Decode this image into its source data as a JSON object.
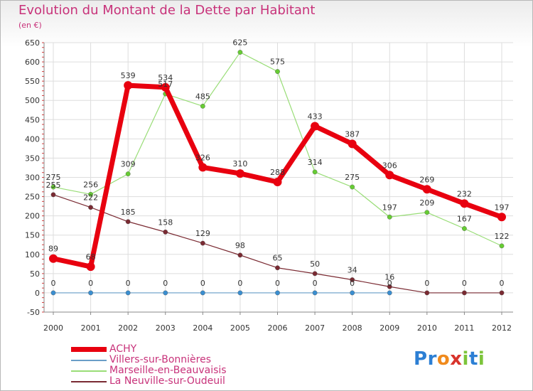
{
  "title": "Evolution du Montant de la Dette par Habitant",
  "subtitle": "(en €)",
  "logo": {
    "text": "Proxiti",
    "letters": [
      "P",
      "r",
      "o",
      "x",
      "i",
      "t",
      "i"
    ],
    "colors": [
      "#2c7fd4",
      "#2c7fd4",
      "#f08a1c",
      "#d8342c",
      "#7cc43a",
      "#2c7fd4",
      "#7cc43a"
    ]
  },
  "chart_data": {
    "type": "line",
    "title": "Evolution du Montant de la Dette par Habitant",
    "ylabel": "(en €)",
    "xlabel": "",
    "x": [
      "2000",
      "2001",
      "2002",
      "2003",
      "2004",
      "2005",
      "2006",
      "2007",
      "2008",
      "2009",
      "2010",
      "2011",
      "2012"
    ],
    "ylim": [
      -50,
      650
    ],
    "yticks": [
      -50,
      0,
      50,
      100,
      150,
      200,
      250,
      300,
      350,
      400,
      450,
      500,
      550,
      600,
      650
    ],
    "grid": true,
    "legend_position": "bottom-left",
    "series": [
      {
        "name": "ACHY",
        "color": "#e8000f",
        "point_color": "#e8000f",
        "width": 7,
        "values": [
          89,
          68,
          539,
          534,
          326,
          310,
          288,
          433,
          387,
          306,
          269,
          232,
          197
        ],
        "labels": [
          "89",
          "68",
          "539",
          "534",
          "326",
          "310",
          "288",
          "433",
          "387",
          "306",
          "269",
          "232",
          "197"
        ]
      },
      {
        "name": "Villers-sur-Bonnières",
        "color": "#6a9ec8",
        "point_color": "#3a8ed0",
        "width": 1.2,
        "values": [
          0,
          0,
          0,
          0,
          0,
          0,
          0,
          0,
          0,
          0,
          null,
          null,
          null
        ],
        "labels": [
          "0",
          "0",
          "0",
          "0",
          "0",
          "0",
          "0",
          "0",
          "0",
          "0",
          "",
          "",
          ""
        ]
      },
      {
        "name": "Marseille-en-Beauvaisis",
        "color": "#99dd77",
        "point_color": "#66cc33",
        "width": 1.2,
        "values": [
          275,
          256,
          309,
          517,
          485,
          625,
          575,
          314,
          275,
          197,
          209,
          167,
          122
        ],
        "labels": [
          "275",
          "256",
          "309",
          "517",
          "485",
          "625",
          "575",
          "314",
          "275",
          "197",
          "209",
          "167",
          "122"
        ]
      },
      {
        "name": "La Neuville-sur-Oudeuil",
        "color": "#7a2a32",
        "point_color": "#7a2a32",
        "width": 1.2,
        "values": [
          255,
          222,
          185,
          158,
          129,
          98,
          65,
          50,
          34,
          16,
          0,
          0,
          0
        ],
        "labels": [
          "255",
          "222",
          "185",
          "158",
          "129",
          "98",
          "65",
          "50",
          "34",
          "16",
          "0",
          "0",
          "0"
        ]
      }
    ]
  }
}
